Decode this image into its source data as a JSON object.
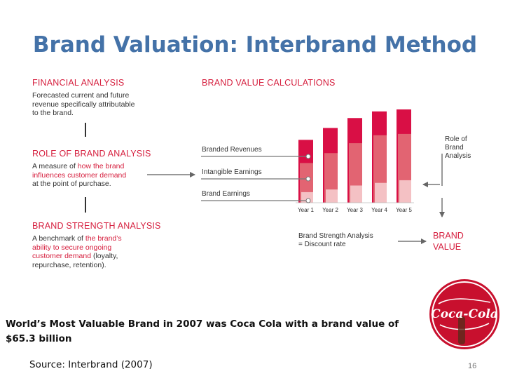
{
  "slide": {
    "title": "Brand Valuation: Interbrand Method",
    "caption": "World’s Most Valuable Brand in 2007 was Coca Cola with a brand value of $65.3 billion",
    "source": "Source: Interbrand (2007)",
    "page_number": "16"
  },
  "figure": {
    "financial": {
      "heading": "FINANCIAL ANALYSIS",
      "lines": [
        "Forecasted current and future",
        "revenue specifically attributable",
        "to the brand."
      ]
    },
    "role": {
      "heading": "ROLE OF BRAND ANALYSIS",
      "line1_plain": "A measure of ",
      "line1_hl": "how the brand",
      "line2_hl": "influences customer demand",
      "line3": "at the point of purchase."
    },
    "strength": {
      "heading": "BRAND STRENGTH ANALYSIS",
      "line1_plain": "A benchmark of ",
      "line1_hl": "the brand’s",
      "line2_hl": "ability to secure ongoing",
      "line3_hl": "customer demand",
      "line3_plain": " (loyalty,",
      "line4": "repurchase, retention)."
    },
    "calc": {
      "heading": "BRAND VALUE CALCULATIONS",
      "labels": [
        "Branded Revenues",
        "Intangible Earnings",
        "Brand Earnings"
      ]
    },
    "role_label": [
      "Role of",
      "Brand",
      "Analysis"
    ],
    "strength_label": [
      "Brand Strength Analysis",
      "= Discount rate"
    ],
    "brand_value_label": [
      "BRAND",
      "VALUE"
    ]
  },
  "chart_data": {
    "type": "bar",
    "categories": [
      "Year 1",
      "Year 2",
      "Year 3",
      "Year 4",
      "Year 5"
    ],
    "series": [
      {
        "name": "Branded Revenues",
        "values": [
          95,
          113,
          128,
          138,
          141
        ],
        "color": "#d90f45"
      },
      {
        "name": "Intangible Earnings",
        "values": [
          60,
          75,
          90,
          102,
          104
        ],
        "color": "#e26472"
      },
      {
        "name": "Brand Earnings",
        "values": [
          16,
          20,
          26,
          30,
          34
        ],
        "color": "#f4c1c4"
      }
    ],
    "ylim": [
      0,
      141
    ]
  },
  "logo": {
    "text": "Coca-Cola",
    "colors": {
      "red": "#c8102e",
      "white": "#ffffff"
    }
  }
}
